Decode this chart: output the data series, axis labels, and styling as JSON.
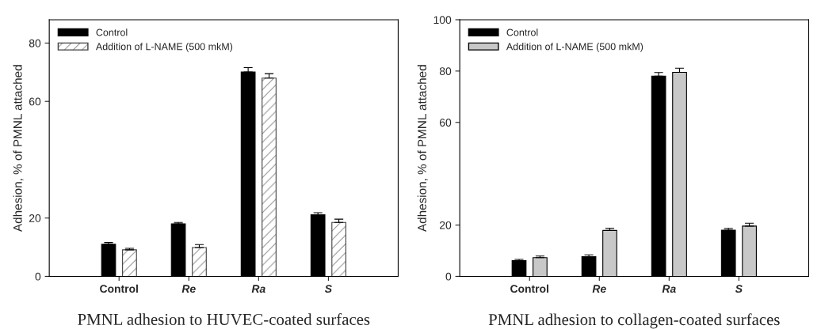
{
  "chart_data": [
    {
      "type": "bar",
      "title": "PMNL adhesion to HUVEC-coated surfaces",
      "ylabel": "Adhesion, % of PMNL attached",
      "categories": [
        "Control",
        "Re",
        "Ra",
        "S"
      ],
      "series": [
        {
          "name": "Control",
          "color": "#000000",
          "values": [
            11.0,
            18.0,
            70.1,
            21.1
          ],
          "errors": [
            0.6,
            0.5,
            1.5,
            0.7
          ]
        },
        {
          "name": "Addition of L-NAME (500 mkM)",
          "color": "#404040",
          "values": [
            9.1,
            9.9,
            68.0,
            18.5
          ],
          "errors": [
            0.5,
            1.0,
            1.5,
            1.1
          ]
        }
      ],
      "ylim": [
        0,
        88
      ],
      "yticks": [
        0,
        20,
        60,
        80
      ],
      "legend": "top left",
      "grid": false
    },
    {
      "type": "bar",
      "title": "PMNL adhesion to collagen-coated surfaces",
      "ylabel": "Adhesion, % of PMNL attached",
      "categories": [
        "Control",
        "Re",
        "Ra",
        "S"
      ],
      "series": [
        {
          "name": "Control",
          "color": "#000000",
          "values": [
            6.1,
            7.7,
            78.0,
            18.0
          ],
          "errors": [
            0.5,
            0.7,
            1.4,
            0.7
          ]
        },
        {
          "name": "Addition of L-NAME (500 mkM)",
          "color": "#c8c8c8",
          "values": [
            7.3,
            17.9,
            79.5,
            19.6
          ],
          "errors": [
            0.6,
            0.9,
            1.6,
            1.1
          ]
        }
      ],
      "ylim": [
        0,
        100
      ],
      "yticks": [
        0,
        20,
        60,
        80,
        100
      ],
      "legend": "top left",
      "grid": false
    }
  ]
}
